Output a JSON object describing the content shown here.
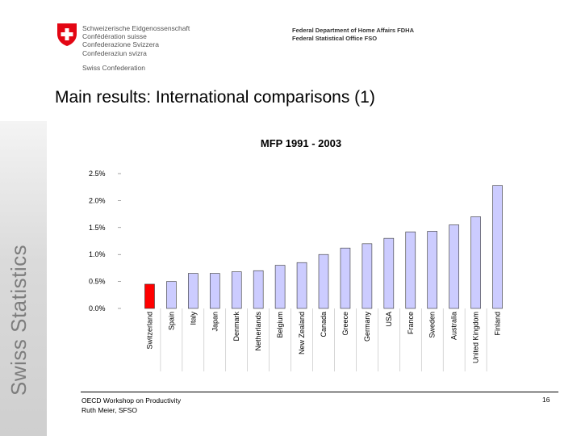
{
  "header": {
    "confederation_lines": [
      "Schweizerische Eidgenossenschaft",
      "Confédération suisse",
      "Confederazione Svizzera",
      "Confederaziun svizra"
    ],
    "confederation_en": "Swiss Confederation",
    "department": "Federal Department of Home Affairs FDHA",
    "office": "Federal Statistical Office FSO"
  },
  "sidebar": {
    "text": "Swiss Statistics"
  },
  "slide": {
    "title": "Main results: International comparisons (1)"
  },
  "footer": {
    "line1": "OECD Workshop on Productivity",
    "line2": "Ruth Meier, SFSO",
    "page_number": "16"
  },
  "colors": {
    "bar": "#ccccff",
    "highlight": "#ff0000",
    "logo_red": "#e30613"
  },
  "chart_data": {
    "type": "bar",
    "title": "MFP 1991 - 2003",
    "xlabel": "",
    "ylabel": "",
    "ylim": [
      0,
      2.5
    ],
    "yticks": [
      {
        "value": 0.0,
        "label": "0.0%"
      },
      {
        "value": 0.5,
        "label": "0.5%"
      },
      {
        "value": 1.0,
        "label": "1.0%"
      },
      {
        "value": 1.5,
        "label": "1.5%"
      },
      {
        "value": 2.0,
        "label": "2.0%"
      },
      {
        "value": 2.5,
        "label": "2.5%"
      }
    ],
    "categories": [
      "Switzerland",
      "Spain",
      "Italy",
      "Japan",
      "Denmark",
      "Netherlands",
      "Belgium",
      "New Zealand",
      "Canada",
      "Greece",
      "Germany",
      "USA",
      "France",
      "Sweden",
      "Australia",
      "United Kingdom",
      "Finland"
    ],
    "values": [
      0.45,
      0.5,
      0.65,
      0.65,
      0.68,
      0.7,
      0.8,
      0.85,
      1.0,
      1.12,
      1.2,
      1.3,
      1.42,
      1.43,
      1.55,
      1.7,
      2.28
    ],
    "highlight_index": 0,
    "grid": false,
    "legend": "none"
  }
}
